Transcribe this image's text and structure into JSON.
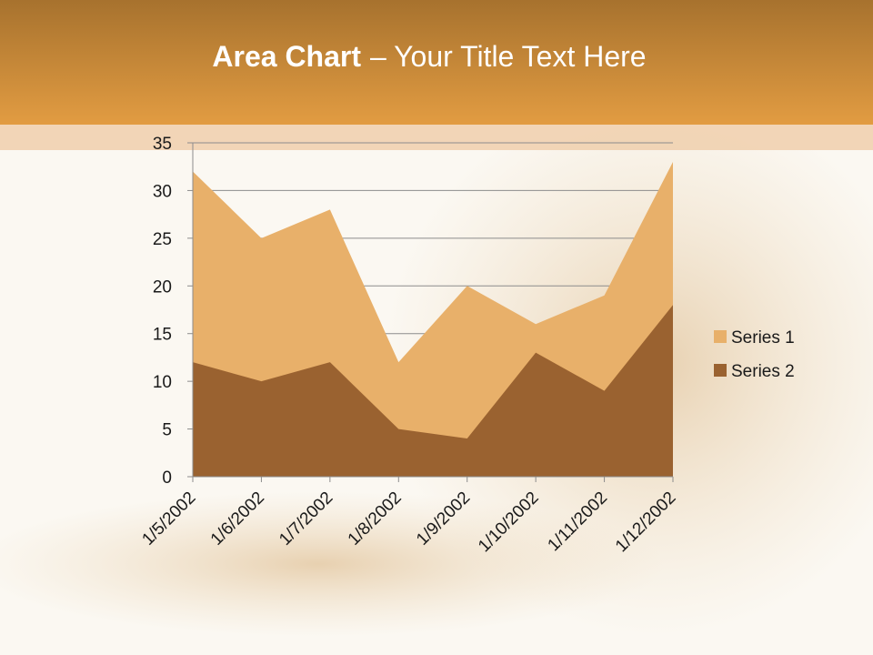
{
  "chart_data": {
    "type": "area",
    "title_bold": "Area Chart",
    "title": "– Your Title Text Here",
    "categories": [
      "1/5/2002",
      "1/6/2002",
      "1/7/2002",
      "1/8/2002",
      "1/9/2002",
      "1/10/2002",
      "1/11/2002",
      "1/12/2002"
    ],
    "series": [
      {
        "name": "Series 1",
        "color": "#e8b06a",
        "values": [
          32,
          25,
          28,
          12,
          20,
          16,
          19,
          33
        ]
      },
      {
        "name": "Series 2",
        "color": "#9a6230",
        "values": [
          12,
          10,
          12,
          5,
          4,
          13,
          9,
          18
        ]
      }
    ],
    "ylim": [
      0,
      35
    ],
    "yticks": [
      0,
      5,
      10,
      15,
      20,
      25,
      30,
      35
    ],
    "grid": true,
    "legend": "right"
  }
}
